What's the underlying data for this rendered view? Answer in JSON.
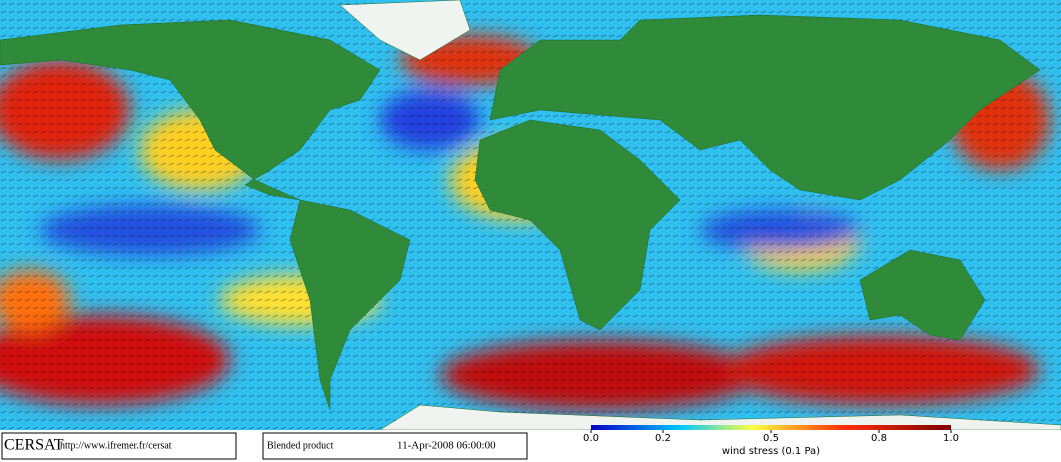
{
  "footer": {
    "logo": "CERSAT",
    "url": "http://www.ifremer.fr/cersat",
    "product": "Blended product",
    "date": "11-Apr-2008 06:00:00"
  },
  "colorbar": {
    "label": "wind stress (0.1 Pa)",
    "range": [
      0,
      1
    ],
    "ticks": [
      {
        "value": 0,
        "label": "0.0"
      },
      {
        "value": 0.2,
        "label": "0.2"
      },
      {
        "value": 0.5,
        "label": "0.5"
      },
      {
        "value": 0.8,
        "label": "0.8"
      },
      {
        "value": 1,
        "label": "1.0"
      }
    ]
  }
}
